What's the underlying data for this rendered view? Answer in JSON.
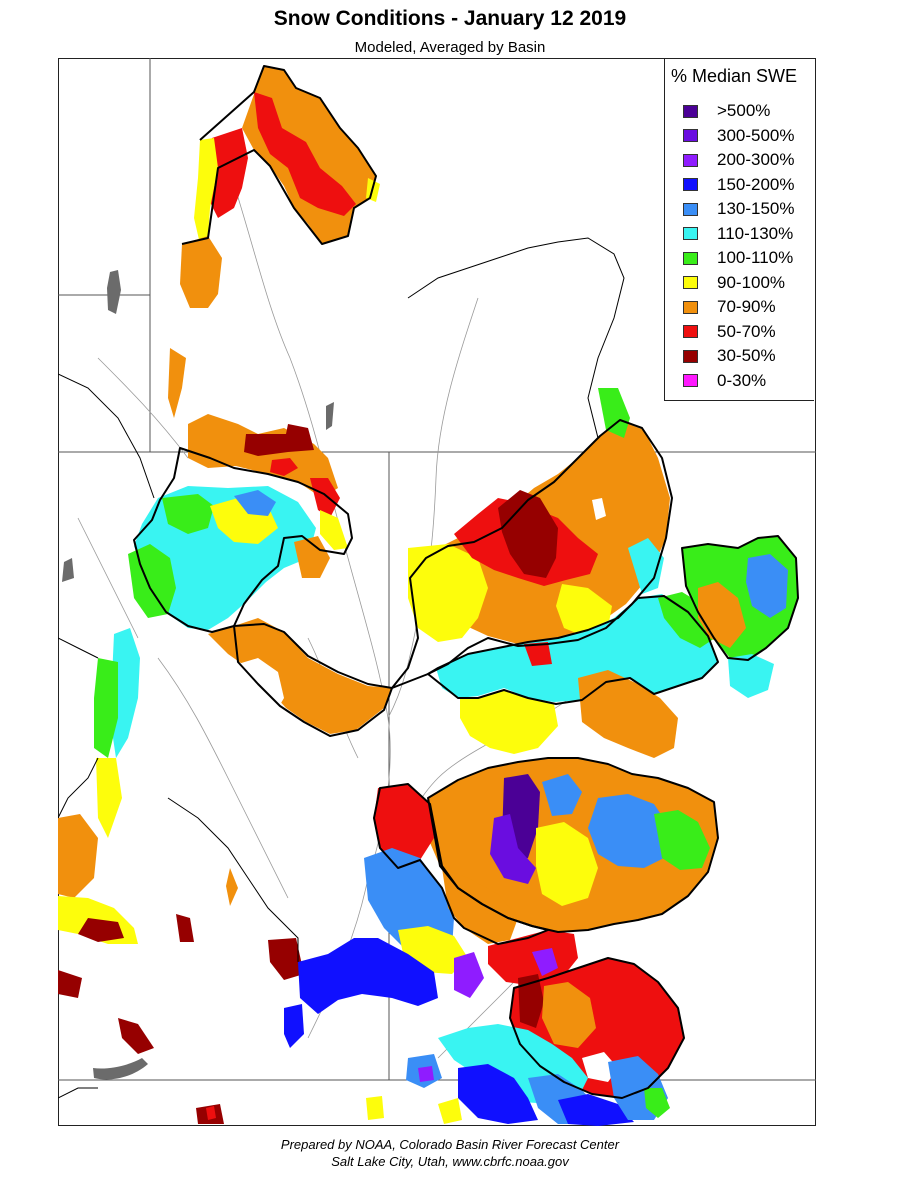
{
  "title": "Snow Conditions - January 12 2019",
  "subtitle": "Modeled, Averaged by Basin",
  "legend": {
    "title": "% Median SWE",
    "items": [
      {
        "label": ">500%",
        "color": "#4b0096"
      },
      {
        "label": "300-500%",
        "color": "#6a0de0"
      },
      {
        "label": "200-300%",
        "color": "#8f1cff"
      },
      {
        "label": "150-200%",
        "color": "#1010ff"
      },
      {
        "label": "130-150%",
        "color": "#3a8ef6"
      },
      {
        "label": "110-130%",
        "color": "#39f4f2"
      },
      {
        "label": "100-110%",
        "color": "#39ed19"
      },
      {
        "label": "90-100%",
        "color": "#fdfd0c"
      },
      {
        "label": "70-90%",
        "color": "#f1900d"
      },
      {
        "label": "50-70%",
        "color": "#ee0f0f"
      },
      {
        "label": "30-50%",
        "color": "#960000"
      },
      {
        "label": "0-30%",
        "color": "#ff19ff"
      }
    ]
  },
  "footer": {
    "line1": "Prepared by NOAA, Colorado Basin River Forecast Center",
    "line2": "Salt Lake City, Utah, www.cbrfc.noaa.gov"
  }
}
